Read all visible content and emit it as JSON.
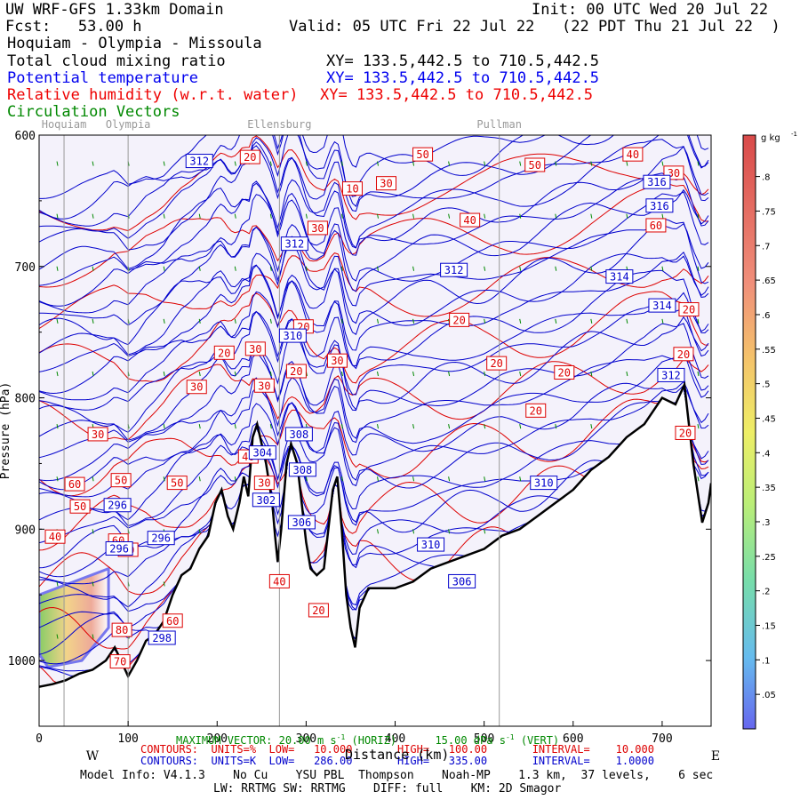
{
  "header": {
    "title": "UW WRF-GFS 1.33km Domain",
    "init": "Init: 00 UTC Wed 20 Jul 22",
    "fcst": "Fcst:   53.00 h",
    "valid": "Valid: 05 UTC Fri 22 Jul 22   (22 PDT Thu 21 Jul 22  )",
    "route": "Hoquiam - Olympia - Missoula",
    "field1": "Total cloud mixing ratio",
    "field1_xy": "XY= 133.5,442.5 to 710.5,442.5",
    "field2": "Potential temperature",
    "field2_xy": "XY= 133.5,442.5 to 710.5,442.5",
    "field3": "Relative humidity (w.r.t. water)",
    "field3_xy": "XY= 133.5,442.5 to 710.5,442.5",
    "field4": "Circulation Vectors"
  },
  "colors": {
    "black": "#000000",
    "theta": "#0000cc",
    "rh": "#dd0000",
    "vectors": "#008800",
    "shade": "#f4f2fb",
    "gray": "#999999"
  },
  "chart_data": {
    "type": "cross-section",
    "xlabel": "Distance (km)",
    "ylabel": "Pressure (hPa)",
    "x_range": [
      0,
      755
    ],
    "y_range": [
      600,
      1050
    ],
    "x_ticks": [
      0,
      100,
      200,
      300,
      400,
      500,
      600,
      700
    ],
    "y_ticks": [
      600,
      700,
      800,
      900,
      1000
    ],
    "y_tick_labels": [
      "600",
      "700",
      "800",
      "900",
      "1000"
    ],
    "y_axis_title_visible": "Pressure (hPa)",
    "cities": [
      {
        "name": "Hoquiam",
        "km": 28
      },
      {
        "name": "Olympia",
        "km": 100
      },
      {
        "name": "Ellensburg",
        "km": 270
      },
      {
        "name": "Pullman",
        "km": 517
      }
    ],
    "dir_left": "W",
    "dir_right": "E",
    "terrain_hpa": [
      [
        0,
        1020
      ],
      [
        15,
        1018
      ],
      [
        30,
        1015
      ],
      [
        45,
        1010
      ],
      [
        60,
        1007
      ],
      [
        75,
        1000
      ],
      [
        85,
        990
      ],
      [
        92,
        1000
      ],
      [
        100,
        1012
      ],
      [
        110,
        1000
      ],
      [
        120,
        985
      ],
      [
        130,
        980
      ],
      [
        140,
        970
      ],
      [
        150,
        950
      ],
      [
        160,
        935
      ],
      [
        170,
        930
      ],
      [
        180,
        915
      ],
      [
        190,
        905
      ],
      [
        198,
        880
      ],
      [
        205,
        870
      ],
      [
        212,
        890
      ],
      [
        218,
        900
      ],
      [
        225,
        880
      ],
      [
        230,
        860
      ],
      [
        235,
        875
      ],
      [
        240,
        830
      ],
      [
        245,
        820
      ],
      [
        250,
        835
      ],
      [
        255,
        850
      ],
      [
        262,
        880
      ],
      [
        265,
        905
      ],
      [
        268,
        925
      ],
      [
        272,
        900
      ],
      [
        278,
        850
      ],
      [
        283,
        835
      ],
      [
        290,
        850
      ],
      [
        295,
        880
      ],
      [
        300,
        910
      ],
      [
        305,
        930
      ],
      [
        312,
        935
      ],
      [
        320,
        930
      ],
      [
        330,
        870
      ],
      [
        335,
        860
      ],
      [
        340,
        900
      ],
      [
        345,
        950
      ],
      [
        350,
        975
      ],
      [
        355,
        990
      ],
      [
        360,
        960
      ],
      [
        370,
        945
      ],
      [
        385,
        945
      ],
      [
        400,
        945
      ],
      [
        420,
        940
      ],
      [
        440,
        930
      ],
      [
        460,
        925
      ],
      [
        480,
        920
      ],
      [
        500,
        915
      ],
      [
        520,
        905
      ],
      [
        540,
        900
      ],
      [
        560,
        890
      ],
      [
        580,
        880
      ],
      [
        600,
        870
      ],
      [
        620,
        855
      ],
      [
        640,
        845
      ],
      [
        660,
        830
      ],
      [
        680,
        820
      ],
      [
        700,
        800
      ],
      [
        715,
        805
      ],
      [
        725,
        790
      ],
      [
        735,
        850
      ],
      [
        745,
        895
      ],
      [
        752,
        880
      ],
      [
        755,
        865
      ]
    ],
    "theta_contours": {
      "units": "K",
      "low": 286,
      "high": 335,
      "interval": 1,
      "labels": [
        {
          "text": "312",
          "km": 180,
          "hpa": 620
        },
        {
          "text": "312",
          "km": 287,
          "hpa": 683
        },
        {
          "text": "312",
          "km": 466,
          "hpa": 703
        },
        {
          "text": "314",
          "km": 652,
          "hpa": 708
        },
        {
          "text": "314",
          "km": 700,
          "hpa": 730
        },
        {
          "text": "316",
          "km": 694,
          "hpa": 636
        },
        {
          "text": "316",
          "km": 697,
          "hpa": 654
        },
        {
          "text": "310",
          "km": 285,
          "hpa": 753
        },
        {
          "text": "312",
          "km": 710,
          "hpa": 783
        },
        {
          "text": "308",
          "km": 292,
          "hpa": 828
        },
        {
          "text": "304",
          "km": 251,
          "hpa": 842
        },
        {
          "text": "308",
          "km": 296,
          "hpa": 855
        },
        {
          "text": "302",
          "km": 255,
          "hpa": 878
        },
        {
          "text": "310",
          "km": 567,
          "hpa": 865
        },
        {
          "text": "296",
          "km": 88,
          "hpa": 882
        },
        {
          "text": "306",
          "km": 295,
          "hpa": 895
        },
        {
          "text": "310",
          "km": 440,
          "hpa": 912
        },
        {
          "text": "296",
          "km": 137,
          "hpa": 907
        },
        {
          "text": "296",
          "km": 90,
          "hpa": 915
        },
        {
          "text": "306",
          "km": 475,
          "hpa": 940
        },
        {
          "text": "298",
          "km": 138,
          "hpa": 983
        }
      ]
    },
    "rh_contours": {
      "units": "%",
      "low": 10,
      "high": 100,
      "interval": 10,
      "labels": [
        {
          "text": "20",
          "km": 237,
          "hpa": 617
        },
        {
          "text": "50",
          "km": 431,
          "hpa": 615
        },
        {
          "text": "50",
          "km": 557,
          "hpa": 623
        },
        {
          "text": "40",
          "km": 667,
          "hpa": 615
        },
        {
          "text": "30",
          "km": 713,
          "hpa": 629
        },
        {
          "text": "10",
          "km": 352,
          "hpa": 641
        },
        {
          "text": "30",
          "km": 390,
          "hpa": 637
        },
        {
          "text": "40",
          "km": 484,
          "hpa": 665
        },
        {
          "text": "60",
          "km": 693,
          "hpa": 669
        },
        {
          "text": "30",
          "km": 313,
          "hpa": 671
        },
        {
          "text": "20",
          "km": 472,
          "hpa": 741
        },
        {
          "text": "20",
          "km": 730,
          "hpa": 733
        },
        {
          "text": "20",
          "km": 297,
          "hpa": 746
        },
        {
          "text": "30",
          "km": 243,
          "hpa": 763
        },
        {
          "text": "20",
          "km": 208,
          "hpa": 766
        },
        {
          "text": "30",
          "km": 335,
          "hpa": 772
        },
        {
          "text": "20",
          "km": 514,
          "hpa": 774
        },
        {
          "text": "20",
          "km": 724,
          "hpa": 767
        },
        {
          "text": "20",
          "km": 590,
          "hpa": 781
        },
        {
          "text": "20",
          "km": 289,
          "hpa": 780
        },
        {
          "text": "30",
          "km": 177,
          "hpa": 792
        },
        {
          "text": "30",
          "km": 253,
          "hpa": 791
        },
        {
          "text": "20",
          "km": 558,
          "hpa": 810
        },
        {
          "text": "20",
          "km": 726,
          "hpa": 827
        },
        {
          "text": "30",
          "km": 66,
          "hpa": 828
        },
        {
          "text": "60",
          "km": 40,
          "hpa": 866
        },
        {
          "text": "50",
          "km": 92,
          "hpa": 863
        },
        {
          "text": "50",
          "km": 155,
          "hpa": 865
        },
        {
          "text": "40",
          "km": 235,
          "hpa": 845
        },
        {
          "text": "30",
          "km": 253,
          "hpa": 865
        },
        {
          "text": "50",
          "km": 46,
          "hpa": 883
        },
        {
          "text": "40",
          "km": 18,
          "hpa": 906
        },
        {
          "text": "60",
          "km": 89,
          "hpa": 909
        },
        {
          "text": "50",
          "km": 100,
          "hpa": 916
        },
        {
          "text": "40",
          "km": 270,
          "hpa": 940
        },
        {
          "text": "60",
          "km": 150,
          "hpa": 970
        },
        {
          "text": "20",
          "km": 314,
          "hpa": 962
        },
        {
          "text": "80",
          "km": 93,
          "hpa": 977
        },
        {
          "text": "70",
          "km": 91,
          "hpa": 1001
        }
      ]
    },
    "cloud_colorbar": {
      "units": "g kg-1",
      "ticks": [
        ".05",
        ".1",
        ".15",
        ".2",
        ".25",
        ".3",
        ".35",
        ".4",
        ".45",
        ".5",
        ".55",
        ".6",
        ".65",
        ".7",
        ".75",
        ".8"
      ]
    },
    "colorbar_units_label": "g kg",
    "colorbar_units_exp": "-1",
    "cloud_region_km": [
      0,
      78
    ],
    "cloud_region_hpa": [
      940,
      1005
    ]
  },
  "footer": {
    "max_vector_prefix": "MAXIMUM VECTOR:",
    "max_vector_value": "20.00 m s",
    "max_vector_exp": "-1",
    "max_vector_h": "(HORIZ)",
    "max_vector_v": "15.00 dPa s",
    "max_vector_v_exp": "-1",
    "max_vector_v_h": "(VERT)",
    "rh_contours": "CONTOURS:  UNITS=%  LOW=   10.000       HIGH=   100.00       INTERVAL=    10.000",
    "theta_contours": "CONTOURS:  UNITS=K  LOW=   286.00       HIGH=   335.00       INTERVAL=    1.0000",
    "model_info": "Model Info: V4.1.3    No Cu    YSU PBL  Thompson    Noah-MP    1.3 km,  37 levels,    6 sec",
    "physics": "LW: RRTMG SW: RRTMG    DIFF: full    KM: 2D Smagor",
    "x_axis_title": "Distance (km)"
  }
}
